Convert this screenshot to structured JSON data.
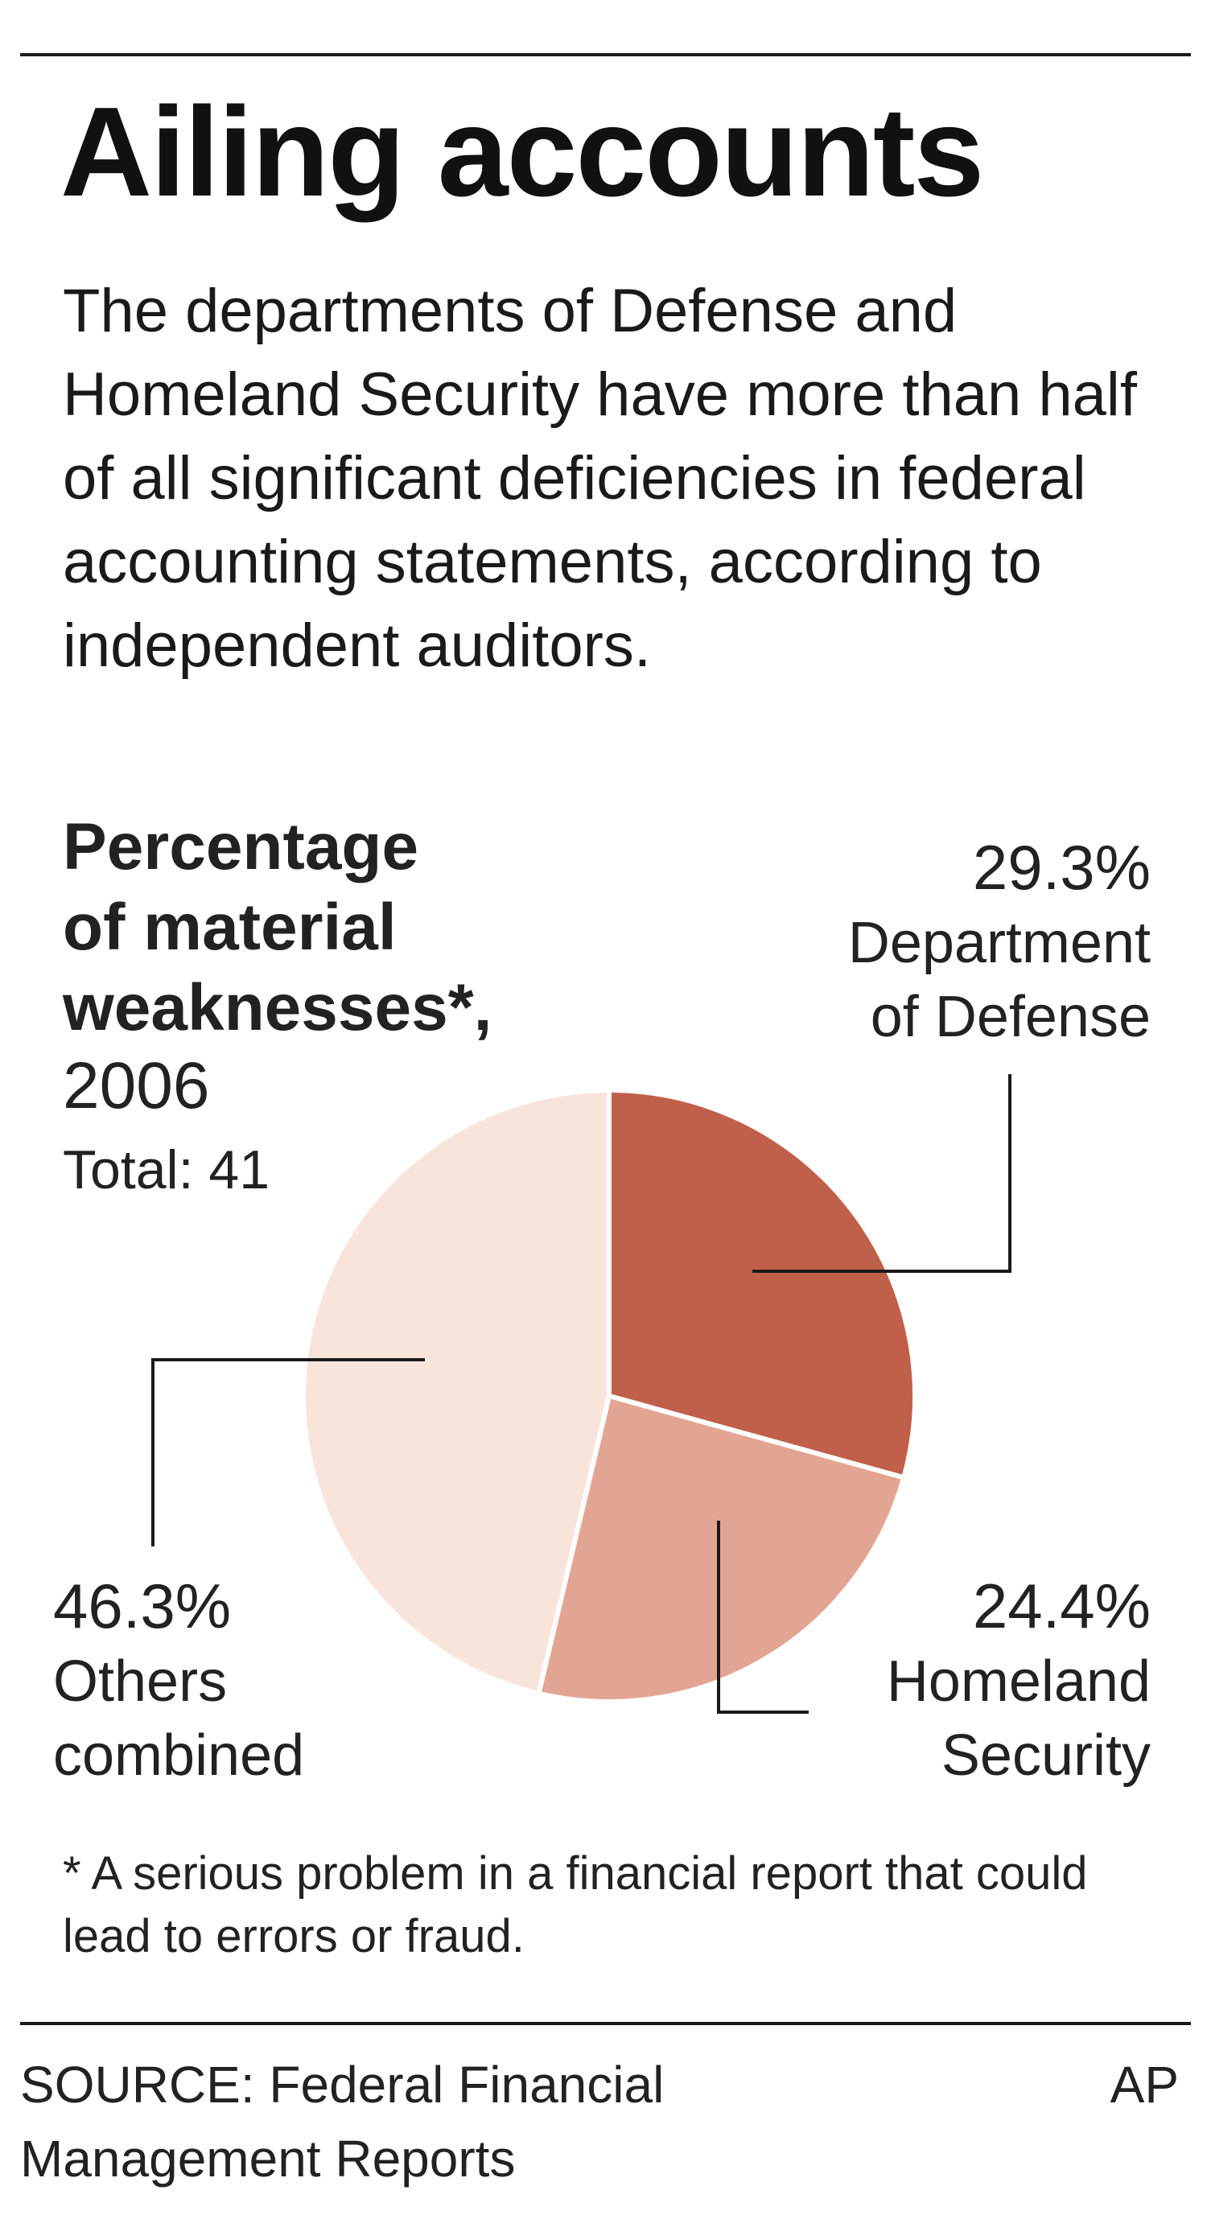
{
  "header": {
    "title": "Ailing accounts",
    "intro": "The departments of Defense and Homeland Security have more than half of all significant deficiencies in federal accounting statements, according to independent auditors."
  },
  "chart_data": {
    "type": "pie",
    "title": "Percentage of material weaknesses*,",
    "year": "2006",
    "total_label": "Total: 41",
    "slices": [
      {
        "name_lines": [
          "Department",
          "of Defense"
        ],
        "label": "29.3%",
        "value": 29.3,
        "color": "#c0604a"
      },
      {
        "name_lines": [
          "Homeland",
          "Security"
        ],
        "label": "24.4%",
        "value": 24.4,
        "color": "#e3a593"
      },
      {
        "name_lines": [
          "Others",
          "combined"
        ],
        "label": "46.3%",
        "value": 46.3,
        "color": "#f9e4dc"
      }
    ]
  },
  "footnote": "* A serious problem in a financial report that could lead to errors or fraud.",
  "source": "SOURCE: Federal Financial Management Reports",
  "credit": "AP"
}
